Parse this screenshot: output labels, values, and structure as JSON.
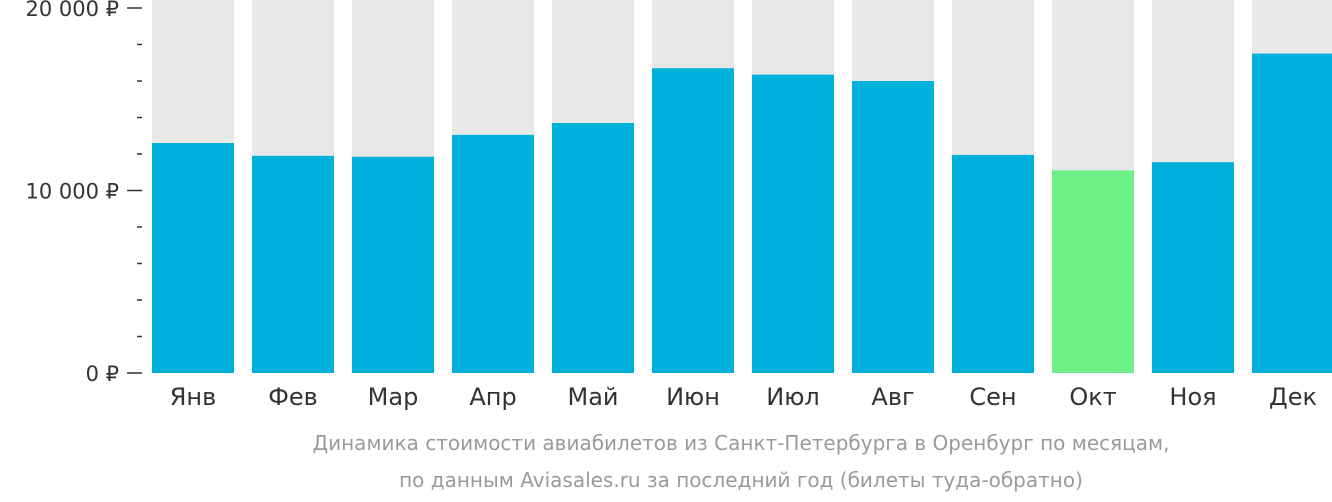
{
  "chart_data": {
    "type": "bar",
    "categories": [
      "Янв",
      "Фев",
      "Мар",
      "Апр",
      "Май",
      "Июн",
      "Июл",
      "Авг",
      "Сен",
      "Окт",
      "Ноя",
      "Дек"
    ],
    "values": [
      12600,
      11900,
      11850,
      13050,
      13700,
      16700,
      16350,
      16000,
      11950,
      11100,
      11550,
      17500
    ],
    "ylim": [
      0,
      20000
    ],
    "yticks": [
      0,
      10000,
      20000
    ],
    "ytick_labels": [
      "0 ₽",
      "10 000 ₽",
      "20 000 ₽"
    ],
    "minor_tick_step": 2000,
    "highlight_index": 9,
    "grid": false,
    "title": "",
    "xlabel": "",
    "ylabel": ""
  },
  "caption": {
    "line1": "Динамика стоимости авиабилетов из Санкт-Петербурга в Оренбург по месяцам,",
    "line2": "по данным Aviasales.ru за последний год (билеты туда-обратно)"
  },
  "colors": {
    "bar": "#00b0dd",
    "highlight": "#6ef087",
    "background_bar": "#e8e8e8",
    "axis": "#333333",
    "caption": "#9a9a9a"
  }
}
